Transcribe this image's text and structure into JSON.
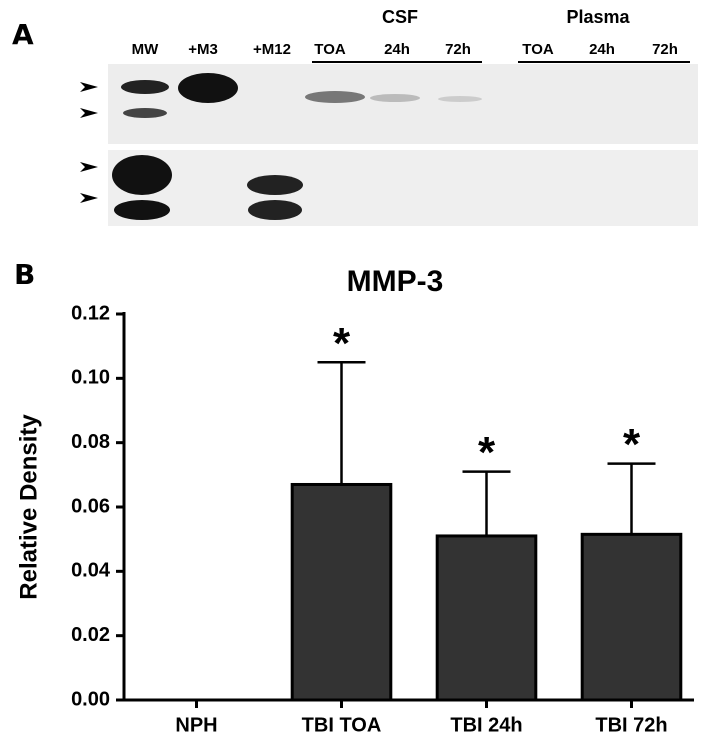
{
  "panel_a": {
    "label": "A",
    "lanes": [
      "MW",
      "+M3",
      "+M12",
      "TOA",
      "24h",
      "72h",
      "TOA",
      "24h",
      "72h"
    ],
    "groups": [
      "CSF",
      "Plasma"
    ]
  },
  "chart_data": {
    "type": "bar",
    "panel_label": "B",
    "title": "MMP-3",
    "y_label": "Relative Density",
    "categories": [
      "NPH",
      "TBI TOA",
      "TBI 24h",
      "TBI 72h"
    ],
    "values": [
      0,
      0.067,
      0.051,
      0.0515
    ],
    "errors": [
      null,
      0.038,
      0.02,
      0.022
    ],
    "color": "#333333",
    "annotations": [
      {
        "category": "TBI TOA",
        "text": "*"
      },
      {
        "category": "TBI 24h",
        "text": "*"
      },
      {
        "category": "TBI 72h",
        "text": "*"
      }
    ],
    "ylim": [
      0,
      0.12
    ],
    "yticks": [
      {
        "value": 0,
        "label": "0.00"
      },
      0.02,
      0.04,
      0.06,
      0.08,
      {
        "value": 0.1,
        "label": "0.10"
      },
      0.12
    ]
  }
}
